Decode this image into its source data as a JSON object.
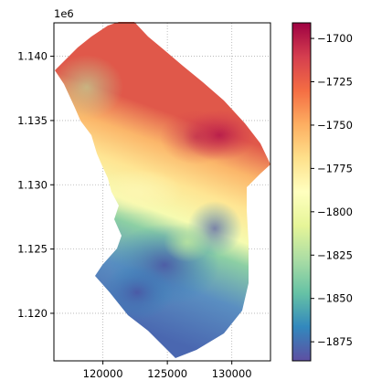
{
  "chart_data": {
    "type": "heatmap",
    "title": "",
    "xlabel": "",
    "ylabel": "",
    "y_offset_label": "1e6",
    "xlim": [
      116200,
      133000
    ],
    "ylim": [
      1116300,
      1142600
    ],
    "x_ticks": [
      120000,
      125000,
      130000
    ],
    "x_tick_labels": [
      "120000",
      "125000",
      "130000"
    ],
    "y_ticks": [
      1120000,
      1125000,
      1130000,
      1135000,
      1140000
    ],
    "y_tick_labels": [
      "1.120",
      "1.125",
      "1.130",
      "1.135",
      "1.140"
    ],
    "grid": true,
    "grid_style": "dotted",
    "colormap": "Spectral_r",
    "colorbar": {
      "range": [
        -1886,
        -1691
      ],
      "ticks": [
        -1700,
        -1725,
        -1750,
        -1775,
        -1800,
        -1825,
        -1850,
        -1875
      ],
      "tick_labels": [
        "−1700",
        "−1725",
        "−1750",
        "−1775",
        "−1800",
        "−1825",
        "−1850",
        "−1875"
      ]
    },
    "value_regions": [
      {
        "area": "northeast ridge",
        "approx_value": -1700
      },
      {
        "area": "north-central",
        "approx_value": -1760
      },
      {
        "area": "west edge",
        "approx_value": -1810
      },
      {
        "area": "center band",
        "approx_value": -1800
      },
      {
        "area": "southeast",
        "approx_value": -1855
      },
      {
        "area": "southwest basin",
        "approx_value": -1875
      },
      {
        "area": "south tip",
        "approx_value": -1840
      }
    ]
  }
}
